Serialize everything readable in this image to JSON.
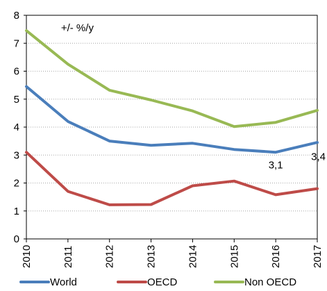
{
  "chart_data": {
    "type": "line",
    "title": "",
    "xlabel": "",
    "ylabel": "",
    "x": [
      "2010",
      "2011",
      "2012",
      "2013",
      "2014",
      "2015",
      "2016",
      "2017"
    ],
    "ylim": [
      0,
      8
    ],
    "yticks": [
      "0",
      "1",
      "2",
      "3",
      "4",
      "5",
      "6",
      "7",
      "8"
    ],
    "grid": "horizontal, dotted",
    "legend_position": "bottom",
    "series": [
      {
        "name": "World",
        "color": "#4a7ebb",
        "values": [
          5.45,
          4.2,
          3.5,
          3.35,
          3.42,
          3.2,
          3.1,
          3.45
        ]
      },
      {
        "name": "OECD",
        "color": "#be4b48",
        "values": [
          3.1,
          1.7,
          1.22,
          1.23,
          1.9,
          2.07,
          1.58,
          1.8
        ]
      },
      {
        "name": "Non OECD",
        "color": "#98b954",
        "values": [
          7.45,
          6.25,
          5.32,
          4.97,
          4.58,
          4.02,
          4.17,
          4.6
        ]
      }
    ],
    "annotations": [
      {
        "text": "+/- %/y",
        "at_x": "2011",
        "at_y": 7.55
      },
      {
        "text": "3,1",
        "at_x": "2016",
        "at_y": 2.65
      },
      {
        "text": "3,4",
        "at_x": "2017",
        "at_y": 2.95
      }
    ]
  }
}
